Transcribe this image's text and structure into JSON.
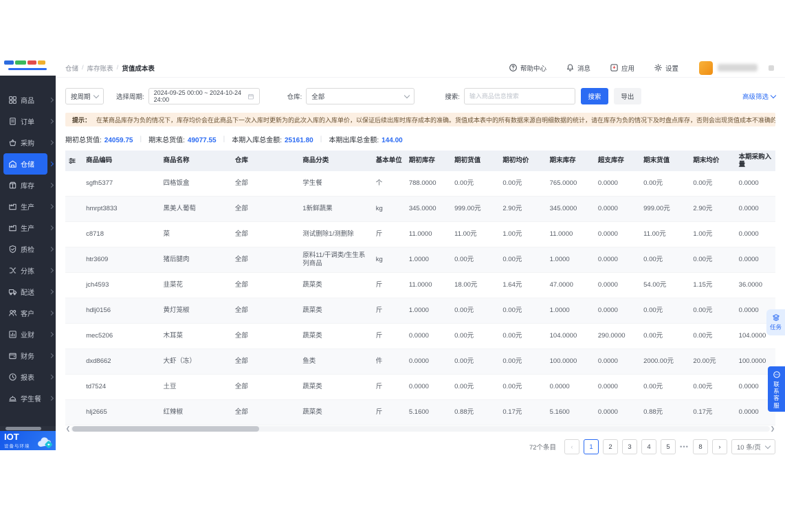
{
  "colors": {
    "accent": "#2b6bf3",
    "sidebar_bg": "#262b37",
    "active_item_bg": "#2468f2",
    "hint_bg": "#fcefe2",
    "table_header_bg": "#eef1f6",
    "logo_bar_colors": [
      "#2d6cdf",
      "#3cb95d",
      "#e34d4d",
      "#f0b02f"
    ]
  },
  "brand": {
    "name": "IOT",
    "subtitle": "设备与环境"
  },
  "sidebar": {
    "items": [
      {
        "label": "商品",
        "icon": "grid-icon"
      },
      {
        "label": "订单",
        "icon": "order-icon"
      },
      {
        "label": "采购",
        "icon": "basket-icon"
      },
      {
        "label": "仓储",
        "icon": "warehouse-icon",
        "active": true
      },
      {
        "label": "库存",
        "icon": "inventory-icon"
      },
      {
        "label": "生产",
        "icon": "factory-icon"
      },
      {
        "label": "生产",
        "icon": "factory-icon"
      },
      {
        "label": "质检",
        "icon": "shield-icon"
      },
      {
        "label": "分拣",
        "icon": "split-icon"
      },
      {
        "label": "配送",
        "icon": "truck-icon"
      },
      {
        "label": "客户",
        "icon": "users-icon"
      },
      {
        "label": "业财",
        "icon": "chart-icon"
      },
      {
        "label": "财务",
        "icon": "wallet-icon"
      },
      {
        "label": "报表",
        "icon": "clock-icon"
      },
      {
        "label": "学生餐",
        "icon": "meal-icon"
      }
    ]
  },
  "topbar": {
    "breadcrumb": [
      "仓储",
      "库存账表",
      "货值成本表"
    ],
    "actions": [
      {
        "label": "帮助中心",
        "icon": "help-icon"
      },
      {
        "label": "消息",
        "icon": "bell-icon"
      },
      {
        "label": "应用",
        "icon": "app-icon"
      },
      {
        "label": "设置",
        "icon": "gear-icon"
      }
    ]
  },
  "filters": {
    "period_type": "按周期",
    "period_label": "选择周期:",
    "period_value": "2024-09-25 00:00 ~ 2024-10-24 24:00",
    "warehouse_label": "仓库:",
    "warehouse_value": "全部",
    "search_label": "搜索:",
    "search_placeholder": "输入商品信息搜索",
    "search_button": "搜索",
    "export_button": "导出",
    "advanced_filter": "高级筛选"
  },
  "hint": {
    "label": "提示：",
    "text": "在某商品库存为负的情况下，库存均价会在此商品下一次入库时更新为的此次入库的入库单价，以保证后续出库时库存成本的准确。货值成本表中的所有数据来源自明细数据的统计，请在库存为负的情况下及时盘点库存，否则会出现货值成本不准确的情况。"
  },
  "summary": {
    "items": [
      {
        "label": "期初总货值:",
        "value": "24059.75"
      },
      {
        "label": "期末总货值:",
        "value": "49077.55"
      },
      {
        "label": "本期入库总金额:",
        "value": "25161.80"
      },
      {
        "label": "本期出库总金额:",
        "value": "144.00"
      }
    ]
  },
  "table": {
    "columns": [
      "商品编码",
      "商品名称",
      "仓库",
      "商品分类",
      "基本单位",
      "期初库存",
      "期初货值",
      "期初均价",
      "期末库存",
      "超支库存",
      "期末货值",
      "期末均价",
      "本期采购入量"
    ],
    "rows": [
      [
        "sgfh5377",
        "四格饭盒",
        "全部",
        "学生餐",
        "个",
        "788.0000",
        "0.00元",
        "0.00元",
        "765.0000",
        "0.0000",
        "0.00元",
        "0.00元",
        "0.0000"
      ],
      [
        "hmrpt3833",
        "黑美人葡萄",
        "全部",
        "1新鲜蔬果",
        "kg",
        "345.0000",
        "999.00元",
        "2.90元",
        "345.0000",
        "0.0000",
        "999.00元",
        "2.90元",
        "0.0000"
      ],
      [
        "c8718",
        "菜",
        "全部",
        "测试删除1/测删除",
        "斤",
        "11.0000",
        "11.00元",
        "1.00元",
        "11.0000",
        "0.0000",
        "11.00元",
        "1.00元",
        "0.0000"
      ],
      [
        "htr3609",
        "猪后腿肉",
        "全部",
        "原料11/干调类/生生系列商品",
        "kg",
        "1.0000",
        "0.00元",
        "0.00元",
        "1.0000",
        "0.0000",
        "0.00元",
        "0.00元",
        "0.0000"
      ],
      [
        "jch4593",
        "韭菜花",
        "全部",
        "蔬菜类",
        "斤",
        "11.0000",
        "18.00元",
        "1.64元",
        "47.0000",
        "0.0000",
        "54.00元",
        "1.15元",
        "36.0000"
      ],
      [
        "hdlj0156",
        "黄灯笼椒",
        "全部",
        "蔬菜类",
        "斤",
        "1.0000",
        "0.00元",
        "0.00元",
        "1.0000",
        "0.0000",
        "0.00元",
        "0.00元",
        "0.0000"
      ],
      [
        "mec5206",
        "木耳菜",
        "全部",
        "蔬菜类",
        "斤",
        "0.0000",
        "0.00元",
        "0.00元",
        "104.0000",
        "290.0000",
        "0.00元",
        "0.00元",
        "104.0000"
      ],
      [
        "dxd8662",
        "大虾（冻）",
        "全部",
        "鱼类",
        "件",
        "0.0000",
        "0.00元",
        "0.00元",
        "100.0000",
        "0.0000",
        "2000.00元",
        "20.00元",
        "100.0000"
      ],
      [
        "td7524",
        "土豆",
        "全部",
        "蔬菜类",
        "斤",
        "0.0000",
        "0.00元",
        "0.00元",
        "0.0000",
        "0.0000",
        "0.00元",
        "0.00元",
        "0.0000"
      ],
      [
        "hlj2665",
        "红辣椒",
        "全部",
        "蔬菜类",
        "斤",
        "5.1600",
        "0.88元",
        "0.17元",
        "5.1600",
        "0.0000",
        "0.88元",
        "0.17元",
        "0.0000"
      ]
    ]
  },
  "pagination": {
    "total": "72个条目",
    "pages": [
      "1",
      "2",
      "3",
      "4",
      "5",
      "⋯",
      "8"
    ],
    "active_page": "1",
    "page_size": "10 条/页"
  },
  "floating": {
    "tasks": "任务",
    "support": "联系客服"
  }
}
